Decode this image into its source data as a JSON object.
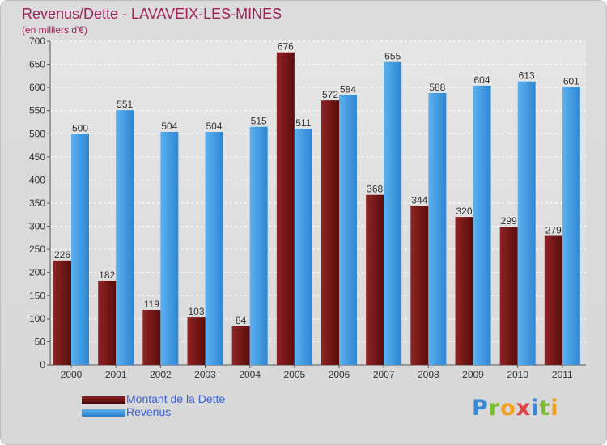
{
  "chart_data": {
    "type": "bar",
    "title": "Revenus/Dette - LAVAVEIX-LES-MINES",
    "subtitle": "(en milliers d'€)",
    "categories": [
      "2000",
      "2001",
      "2002",
      "2003",
      "2004",
      "2005",
      "2006",
      "2007",
      "2008",
      "2009",
      "2010",
      "2011"
    ],
    "series": [
      {
        "name": "Montant de la Dette",
        "color": "#7a1a1a",
        "values": [
          226,
          182,
          119,
          103,
          84,
          676,
          572,
          368,
          344,
          320,
          299,
          279
        ]
      },
      {
        "name": "Revenus",
        "color": "#3f97e3",
        "values": [
          500,
          551,
          504,
          504,
          515,
          511,
          584,
          655,
          588,
          604,
          613,
          601
        ]
      }
    ],
    "ylim": [
      0,
      700
    ],
    "yticks": [
      0,
      50,
      100,
      150,
      200,
      250,
      300,
      350,
      400,
      450,
      500,
      550,
      600,
      650,
      700
    ],
    "grid": true,
    "legend_position": "bottom-left"
  },
  "logo": {
    "letters": [
      "P",
      "r",
      "o",
      "x",
      "i",
      "t",
      "i"
    ],
    "colors": [
      "#3a87d6",
      "#7bbd2c",
      "#f0a020",
      "#e04040",
      "#3a87d6",
      "#7bbd2c",
      "#f0a020"
    ]
  }
}
